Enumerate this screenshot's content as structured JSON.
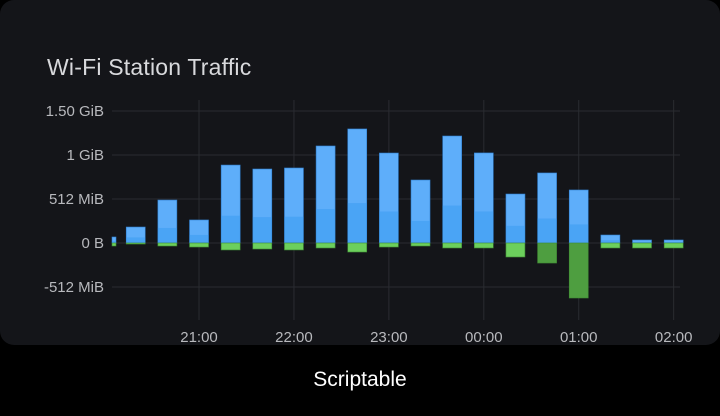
{
  "chart_data": {
    "type": "bar",
    "stacked": true,
    "title": "Wi-Fi Station Traffic",
    "xlabel": "",
    "ylabel": "",
    "y_unit": "MiB",
    "ylim": [
      -600,
      1600
    ],
    "y_ticks": [
      {
        "value": 1536,
        "label": "1.50 GiB"
      },
      {
        "value": 1024,
        "label": "1 GiB"
      },
      {
        "value": 512,
        "label": "512 MiB"
      },
      {
        "value": 0,
        "label": "0 B"
      },
      {
        "value": -512,
        "label": "-512 MiB"
      }
    ],
    "x_range": [
      "20:05",
      "02:04"
    ],
    "x_ticks": [
      "21:00",
      "22:00",
      "23:00",
      "00:00",
      "01:00",
      "02:00"
    ],
    "grid": true,
    "legend": "none",
    "colors": {
      "positive": "#5eaefa",
      "positive_dark": "#3d9cf2",
      "negative": "#6ccf5c",
      "negative_dark": "#4e9e40",
      "grid": "#2a2c31",
      "background": "#141519"
    },
    "x": [
      "20:05",
      "20:20",
      "20:40",
      "21:00",
      "21:20",
      "21:40",
      "22:00",
      "22:20",
      "22:40",
      "23:00",
      "23:20",
      "23:40",
      "00:00",
      "00:20",
      "00:40",
      "01:00",
      "01:20",
      "01:40",
      "02:00"
    ],
    "series": [
      {
        "values": [
          70,
          186,
          500,
          268,
          907,
          861,
          873,
          1129,
          1327,
          1047,
          733,
          1245,
          1048,
          570,
          815,
          617,
          93,
          35,
          35
        ]
      },
      {
        "values": [
          -35,
          -12,
          -35,
          -47,
          -81,
          -70,
          -81,
          -58,
          -105,
          -47,
          -35,
          -58,
          -58,
          -163,
          -233,
          -640,
          -58,
          -58,
          -58
        ]
      }
    ]
  },
  "footer": {
    "caption": "Scriptable"
  }
}
